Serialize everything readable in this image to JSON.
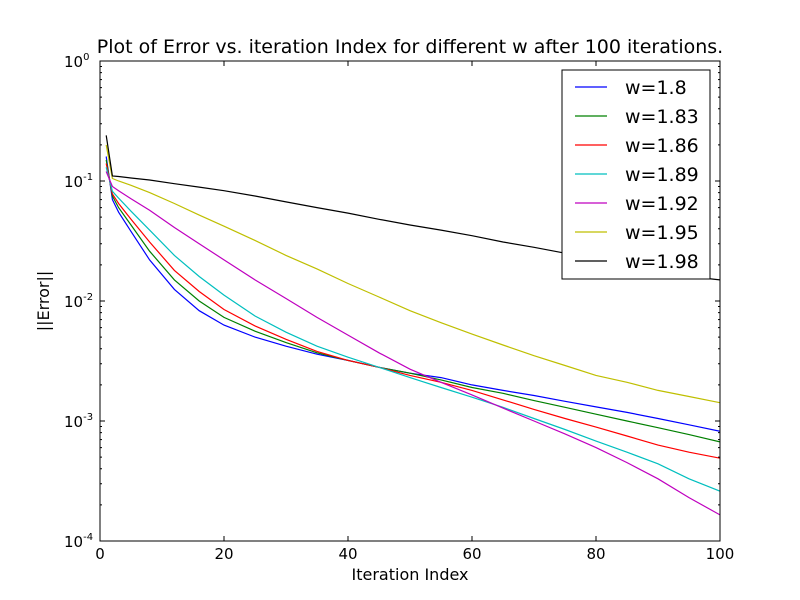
{
  "chart_data": {
    "type": "line",
    "title": "Plot of Error vs. iteration Index for different w after 100 iterations.",
    "xlabel": "Iteration Index",
    "ylabel": "||Error||",
    "xlim": [
      0,
      100
    ],
    "ylim": [
      0.0001,
      1
    ],
    "yscale": "log",
    "grid": false,
    "legend_position": "top-right",
    "x_ticks": [
      {
        "value": 0,
        "label": "0"
      },
      {
        "value": 20,
        "label": "20"
      },
      {
        "value": 40,
        "label": "40"
      },
      {
        "value": 60,
        "label": "60"
      },
      {
        "value": 80,
        "label": "80"
      },
      {
        "value": 100,
        "label": "100"
      }
    ],
    "y_ticks": [
      {
        "value": 1,
        "base": "10",
        "exp": "0"
      },
      {
        "value": 0.1,
        "base": "10",
        "exp": "-1"
      },
      {
        "value": 0.01,
        "base": "10",
        "exp": "-2"
      },
      {
        "value": 0.001,
        "base": "10",
        "exp": "-3"
      },
      {
        "value": 0.0001,
        "base": "10",
        "exp": "-4"
      }
    ],
    "x": [
      1,
      2,
      3,
      5,
      8,
      12,
      16,
      20,
      25,
      30,
      35,
      40,
      45,
      50,
      55,
      60,
      65,
      70,
      75,
      80,
      85,
      90,
      95,
      100
    ],
    "series": [
      {
        "name": "w=1.8",
        "color": "#0000ff",
        "values": [
          0.16,
          0.07,
          0.055,
          0.038,
          0.022,
          0.0125,
          0.0083,
          0.0063,
          0.005,
          0.0042,
          0.0036,
          0.0032,
          0.0028,
          0.0025,
          0.0023,
          0.002,
          0.0018,
          0.00163,
          0.00146,
          0.00131,
          0.00118,
          0.00105,
          0.00093,
          0.00082
        ]
      },
      {
        "name": "w=1.83",
        "color": "#008000",
        "values": [
          0.15,
          0.075,
          0.06,
          0.043,
          0.026,
          0.015,
          0.01,
          0.0073,
          0.0056,
          0.0045,
          0.0037,
          0.0032,
          0.0028,
          0.0025,
          0.0022,
          0.0019,
          0.0017,
          0.00148,
          0.0013,
          0.00114,
          0.001,
          0.00088,
          0.00077,
          0.00067
        ]
      },
      {
        "name": "w=1.86",
        "color": "#ff0000",
        "values": [
          0.14,
          0.078,
          0.065,
          0.048,
          0.031,
          0.018,
          0.012,
          0.0085,
          0.0062,
          0.0048,
          0.0038,
          0.0032,
          0.0028,
          0.0024,
          0.0021,
          0.0018,
          0.0015,
          0.00125,
          0.00105,
          0.00089,
          0.00075,
          0.00063,
          0.00055,
          0.00049
        ]
      },
      {
        "name": "w=1.89",
        "color": "#00bfbf",
        "values": [
          0.13,
          0.082,
          0.072,
          0.056,
          0.039,
          0.024,
          0.016,
          0.0112,
          0.0075,
          0.0055,
          0.0042,
          0.0034,
          0.0028,
          0.0023,
          0.0019,
          0.00158,
          0.0013,
          0.00105,
          0.00085,
          0.00068,
          0.00055,
          0.00044,
          0.00033,
          0.00026
        ]
      },
      {
        "name": "w=1.92",
        "color": "#bf00bf",
        "values": [
          0.12,
          0.09,
          0.083,
          0.071,
          0.057,
          0.041,
          0.03,
          0.022,
          0.015,
          0.0105,
          0.0073,
          0.0052,
          0.0037,
          0.0027,
          0.0021,
          0.00165,
          0.00128,
          0.001,
          0.00078,
          0.0006,
          0.00045,
          0.00033,
          0.00023,
          0.000165
        ]
      },
      {
        "name": "w=1.95",
        "color": "#bfbf00",
        "values": [
          0.2,
          0.105,
          0.1,
          0.092,
          0.08,
          0.065,
          0.052,
          0.042,
          0.032,
          0.024,
          0.0185,
          0.014,
          0.0108,
          0.0083,
          0.0066,
          0.0053,
          0.0043,
          0.0035,
          0.0029,
          0.0024,
          0.0021,
          0.0018,
          0.0016,
          0.00142
        ]
      },
      {
        "name": "w=1.98",
        "color": "#000000",
        "values": [
          0.24,
          0.11,
          0.109,
          0.106,
          0.102,
          0.095,
          0.089,
          0.083,
          0.075,
          0.067,
          0.06,
          0.054,
          0.048,
          0.043,
          0.039,
          0.035,
          0.031,
          0.028,
          0.025,
          0.022,
          0.02,
          0.018,
          0.016,
          0.015
        ]
      }
    ]
  }
}
